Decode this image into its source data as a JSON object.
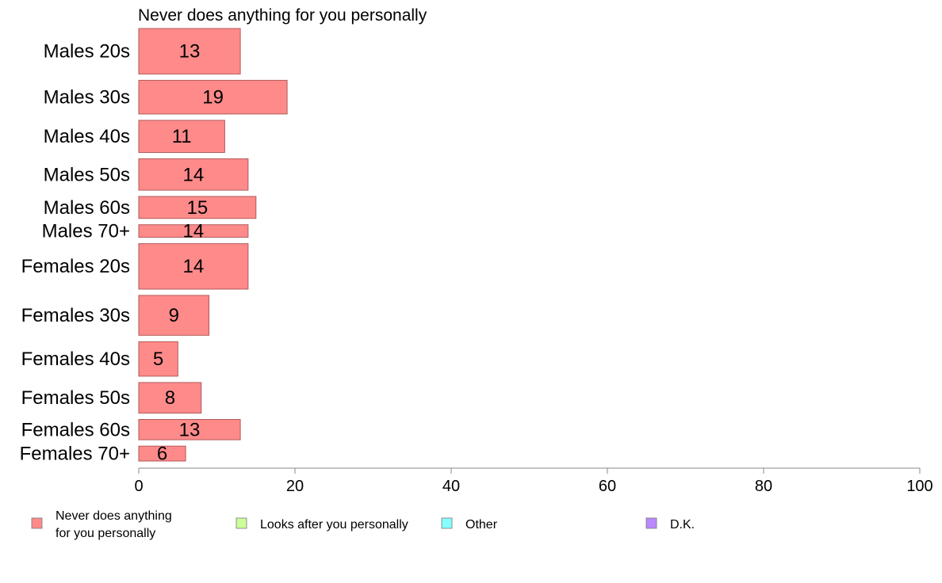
{
  "chart_data": {
    "type": "bar",
    "orientation": "horizontal",
    "title": "Never does anything for you personally",
    "categories": [
      "Males 20s",
      "Males 30s",
      "Males 40s",
      "Males 50s",
      "Males 60s",
      "Males 70+",
      "Females 20s",
      "Females 30s",
      "Females 40s",
      "Females 50s",
      "Females 60s",
      "Females 70+"
    ],
    "series": [
      {
        "name": "Never does anything for you personally",
        "values": [
          13,
          19,
          11,
          14,
          15,
          14,
          14,
          9,
          5,
          8,
          13,
          6
        ]
      }
    ],
    "value_labels": [
      "13",
      "19",
      "11",
      "14",
      "15",
      "14",
      "14",
      "9",
      "5",
      "8",
      "13",
      "6"
    ],
    "group_weights": [
      58,
      43,
      41,
      40,
      28,
      16,
      58,
      51,
      44,
      39,
      26,
      19
    ],
    "xlim": [
      0,
      100
    ],
    "xticks": [
      0,
      20,
      40,
      60,
      80,
      100
    ],
    "xtick_labels": [
      "0",
      "20",
      "40",
      "60",
      "80",
      "100"
    ],
    "grid": false,
    "legend": {
      "placement": "bottom",
      "entries": [
        {
          "lines": [
            "Never does anything",
            "for you personally"
          ],
          "color": "#ff8a8a"
        },
        {
          "lines": [
            "Looks after you personally"
          ],
          "color": "#ccff99"
        },
        {
          "lines": [
            "Other"
          ],
          "color": "#88ffff"
        },
        {
          "lines": [
            "D.K."
          ],
          "color": "#bb88ff"
        }
      ]
    },
    "colors": {
      "bar_fill": "#ff8a8a",
      "bar_stroke": "#b05a5a",
      "axis": "#888888"
    }
  }
}
